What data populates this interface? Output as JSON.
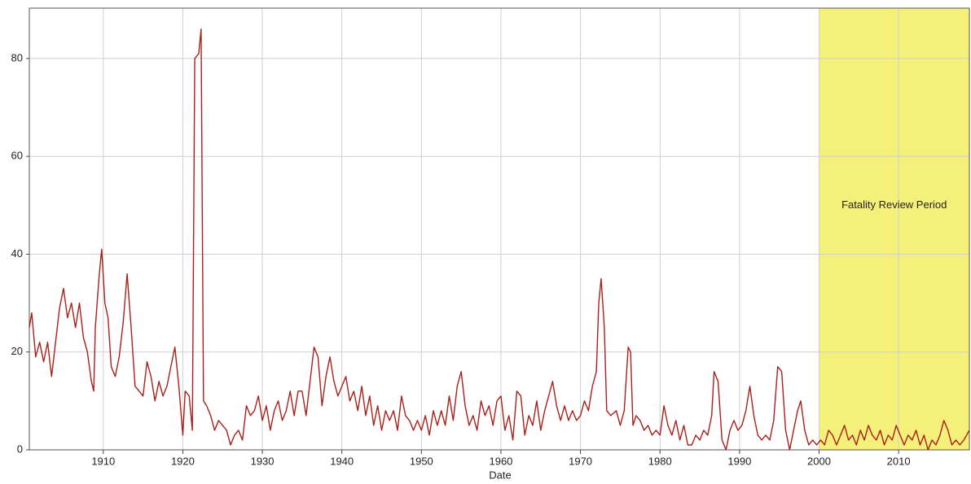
{
  "chart_data": {
    "type": "line",
    "x_label": "Date",
    "xlim": [
      1900.7,
      2018.9
    ],
    "ylim": [
      0,
      90.3
    ],
    "xticks": [
      1910,
      1920,
      1930,
      1940,
      1950,
      1960,
      1970,
      1980,
      1990,
      2000,
      2010
    ],
    "yticks": [
      0,
      20,
      40,
      60,
      80
    ],
    "grid": true,
    "highlight": {
      "xlim": [
        2000,
        2018.9
      ],
      "color": "#f5f07a",
      "label": "Fatality Review Period"
    },
    "x": [
      1900.7,
      1901,
      1901.5,
      1902,
      1902.5,
      1903,
      1903.5,
      1904,
      1904.5,
      1905,
      1905.5,
      1906,
      1906.5,
      1907,
      1907.5,
      1908,
      1908.5,
      1908.8,
      1909,
      1909.5,
      1909.8,
      1910.2,
      1910.6,
      1911,
      1911.5,
      1912,
      1912.5,
      1913,
      1913.5,
      1914,
      1914.5,
      1915,
      1915.5,
      1916,
      1916.5,
      1917,
      1917.5,
      1918,
      1918.5,
      1919,
      1919.5,
      1920,
      1920.3,
      1920.8,
      1921.2,
      1921.5,
      1922,
      1922.3,
      1922.6,
      1923,
      1923.5,
      1924,
      1924.5,
      1925,
      1925.5,
      1926,
      1926.5,
      1927,
      1927.5,
      1928,
      1928.5,
      1929,
      1929.5,
      1930,
      1930.5,
      1931,
      1931.5,
      1932,
      1932.5,
      1933,
      1933.5,
      1934,
      1934.5,
      1935,
      1935.5,
      1936,
      1936.5,
      1937,
      1937.5,
      1938,
      1938.5,
      1939,
      1939.5,
      1940,
      1940.5,
      1941,
      1941.5,
      1942,
      1942.5,
      1943,
      1943.5,
      1944,
      1944.5,
      1945,
      1945.5,
      1946,
      1946.5,
      1947,
      1947.5,
      1948,
      1948.5,
      1949,
      1949.5,
      1950,
      1950.5,
      1951,
      1951.5,
      1952,
      1952.5,
      1953,
      1953.5,
      1954,
      1954.5,
      1955,
      1955.5,
      1956,
      1956.5,
      1957,
      1957.5,
      1958,
      1958.5,
      1959,
      1959.5,
      1960,
      1960.5,
      1961,
      1961.5,
      1962,
      1962.5,
      1963,
      1963.5,
      1964,
      1964.5,
      1965,
      1965.5,
      1966,
      1966.5,
      1967,
      1967.5,
      1968,
      1968.5,
      1969,
      1969.5,
      1970,
      1970.5,
      1971,
      1971.5,
      1972,
      1972.3,
      1972.6,
      1973,
      1973.3,
      1973.8,
      1974.5,
      1975,
      1975.5,
      1976,
      1976.3,
      1976.6,
      1977,
      1977.5,
      1978,
      1978.5,
      1979,
      1979.5,
      1980,
      1980.5,
      1981,
      1981.5,
      1982,
      1982.5,
      1983,
      1983.5,
      1984,
      1984.5,
      1985,
      1985.5,
      1986,
      1986.5,
      1986.8,
      1987.3,
      1987.8,
      1988.3,
      1988.8,
      1989.3,
      1989.8,
      1990.3,
      1990.8,
      1991.3,
      1991.8,
      1992.3,
      1992.8,
      1993.3,
      1993.8,
      1994.3,
      1994.8,
      1995.3,
      1995.8,
      1996.3,
      1996.8,
      1997.3,
      1997.7,
      1998.2,
      1998.7,
      1999.2,
      1999.7,
      2000.2,
      2000.7,
      2001.2,
      2001.7,
      2002.2,
      2002.7,
      2003.2,
      2003.7,
      2004.2,
      2004.7,
      2005.2,
      2005.7,
      2006.2,
      2006.7,
      2007.2,
      2007.7,
      2008.2,
      2008.7,
      2009.2,
      2009.7,
      2010.2,
      2010.7,
      2011.2,
      2011.7,
      2012.2,
      2012.7,
      2013.2,
      2013.7,
      2014.2,
      2014.7,
      2015.2,
      2015.7,
      2016.2,
      2016.7,
      2017.2,
      2017.7,
      2018.2,
      2018.9
    ],
    "series": [
      {
        "color": "#a8201a",
        "values": [
          25,
          28,
          19,
          22,
          18,
          22,
          15,
          22,
          29,
          33,
          27,
          30,
          25,
          30,
          23,
          20,
          14,
          12,
          25,
          36,
          41,
          30,
          27,
          17,
          15,
          19,
          26,
          36,
          25,
          13,
          12,
          11,
          18,
          15,
          10,
          14,
          11,
          13,
          17,
          21,
          13,
          3,
          12,
          11,
          4,
          80,
          81,
          86,
          10,
          9,
          7,
          4,
          6,
          5,
          4,
          1,
          3,
          4,
          2,
          9,
          7,
          8,
          11,
          6,
          9,
          4,
          8,
          10,
          6,
          8,
          12,
          7,
          12,
          12,
          7,
          14,
          21,
          19,
          9,
          15,
          19,
          14,
          11,
          13,
          15,
          10,
          12,
          8,
          13,
          7,
          11,
          5,
          9,
          4,
          8,
          6,
          8,
          4,
          11,
          7,
          6,
          4,
          6,
          4,
          7,
          3,
          8,
          5,
          8,
          5,
          11,
          6,
          13,
          16,
          9,
          5,
          7,
          4,
          10,
          7,
          9,
          5,
          10,
          11,
          4,
          7,
          2,
          12,
          11,
          3,
          7,
          5,
          10,
          4,
          8,
          11,
          14,
          9,
          6,
          9,
          6,
          8,
          6,
          7,
          10,
          8,
          13,
          16,
          30,
          35,
          25,
          8,
          7,
          8,
          5,
          8,
          21,
          20,
          5,
          7,
          6,
          4,
          5,
          3,
          4,
          3,
          9,
          5,
          3,
          6,
          2,
          5,
          1,
          1,
          3,
          2,
          4,
          3,
          7,
          16,
          14,
          2,
          0,
          4,
          6,
          4,
          5,
          8,
          13,
          7,
          3,
          2,
          3,
          2,
          6,
          17,
          16,
          4,
          0,
          4,
          8,
          10,
          4,
          1,
          2,
          1,
          2,
          1,
          4,
          3,
          1,
          3,
          5,
          2,
          3,
          1,
          4,
          2,
          5,
          3,
          2,
          4,
          1,
          3,
          2,
          5,
          3,
          1,
          3,
          2,
          4,
          1,
          3,
          0,
          2,
          1,
          3,
          6,
          4,
          1,
          2,
          1,
          2,
          4
        ]
      }
    ]
  }
}
